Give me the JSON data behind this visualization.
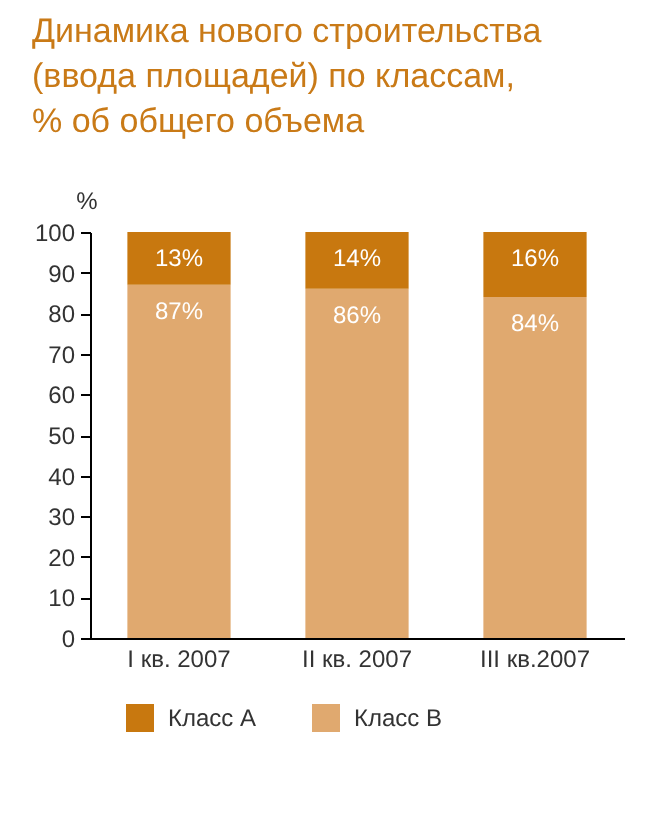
{
  "chart_data": {
    "type": "bar",
    "title": "Динамика нового строительства\n(ввода площадей) по классам,\n% об общего объема",
    "ylabel": "%",
    "categories": [
      "I кв. 2007",
      "II кв. 2007",
      "III кв.2007"
    ],
    "stacked": true,
    "series": [
      {
        "name": "Класс В",
        "color": "#e0a96f",
        "values": [
          87,
          86,
          84
        ],
        "value_labels": [
          "87%",
          "86%",
          "84%"
        ]
      },
      {
        "name": "Класс А",
        "color": "#c8780f",
        "values": [
          13,
          14,
          16
        ],
        "value_labels": [
          "13%",
          "14%",
          "16%"
        ]
      }
    ],
    "ylim": [
      0,
      100
    ],
    "yticks": [
      0,
      10,
      20,
      30,
      40,
      50,
      60,
      70,
      80,
      90,
      100
    ],
    "grid": false,
    "legend": "bottom"
  }
}
